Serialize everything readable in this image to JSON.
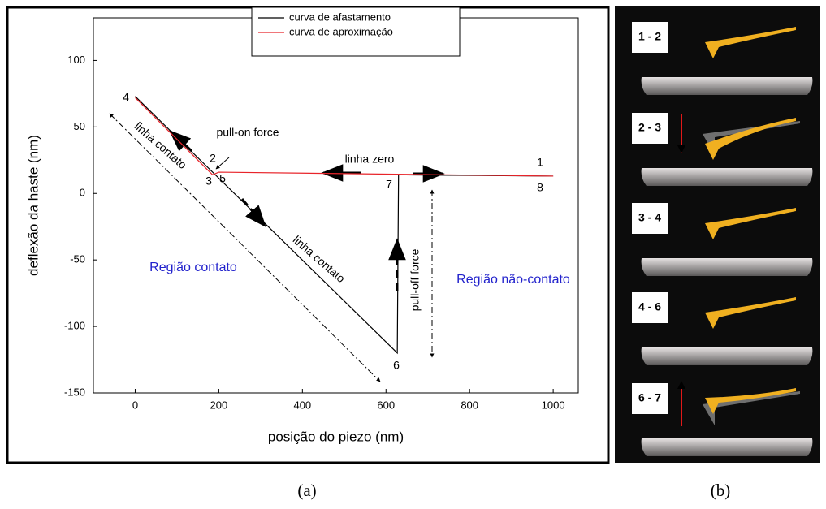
{
  "chart_data": {
    "type": "line",
    "xlabel": "posição do piezo (nm)",
    "ylabel": "deflexão da haste (nm)",
    "xlim": [
      -100,
      1060
    ],
    "ylim": [
      -150,
      132
    ],
    "xticks": [
      0,
      200,
      400,
      600,
      800,
      1000
    ],
    "yticks": [
      -150,
      -100,
      -50,
      0,
      50,
      100
    ],
    "legend": "upper center",
    "series": [
      {
        "name": "curva de afastamento",
        "color": "#000000",
        "x": [
          0,
          627,
          630,
          1000
        ],
        "values": [
          73,
          -120,
          14,
          13
        ]
      },
      {
        "name": "curva de aproximação",
        "color": "#e8242a",
        "x": [
          1000,
          200,
          185,
          0
        ],
        "values": [
          13,
          16,
          14,
          72
        ]
      }
    ],
    "annotations": [
      "4",
      "2",
      "3",
      "5",
      "1",
      "8",
      "7",
      "6",
      "linha contato",
      "pull-on force",
      "linha zero",
      "linha contato",
      "pull-off force",
      "Região contato",
      "Região não-contato"
    ]
  },
  "panel_b": {
    "labels": [
      "1 - 2",
      "2 - 3",
      "3 - 4",
      "4 - 6",
      "6 - 7"
    ]
  },
  "captions": [
    "(a)",
    "(b)"
  ]
}
